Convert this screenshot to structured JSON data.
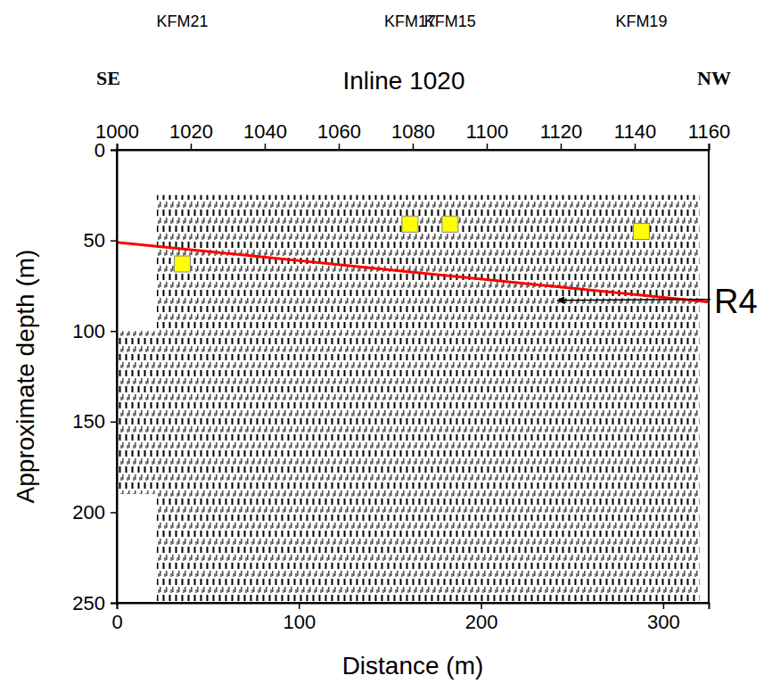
{
  "chart_data": {
    "type": "seismic_section",
    "title": "Inline 1020",
    "left_label": "SE",
    "right_label": "NW",
    "x_label": "Distance (m)",
    "y_label": "Approximate depth (m)",
    "xlim": [
      0,
      325
    ],
    "xticks": [
      0,
      100,
      200,
      300
    ],
    "x2lim": [
      1000,
      1160
    ],
    "x2ticks": [
      1000,
      1020,
      1040,
      1060,
      1080,
      1100,
      1120,
      1140,
      1160
    ],
    "ylim": [
      250,
      0
    ],
    "yticks": [
      0,
      50,
      100,
      150,
      200,
      250
    ],
    "coverage": {
      "x": [
        22,
        320,
        320,
        22,
        22,
        0,
        0,
        22
      ],
      "depth": [
        25,
        25,
        250,
        250,
        190,
        190,
        100,
        100
      ]
    },
    "boreholes": {
      "names": [
        "KFM21",
        "KFM17",
        "KFM15",
        "KFM19"
      ],
      "x": [
        36,
        161,
        183,
        288
      ],
      "depth": [
        63,
        41,
        41,
        45
      ],
      "color": "#ffff00",
      "marker": "square"
    },
    "reflector": {
      "x": [
        0,
        325
      ],
      "depth": [
        51,
        84
      ],
      "color": "#ff0000",
      "line_style": "solid"
    },
    "annotations": [
      {
        "text": "R4",
        "x": 242,
        "y": 83
      }
    ]
  }
}
